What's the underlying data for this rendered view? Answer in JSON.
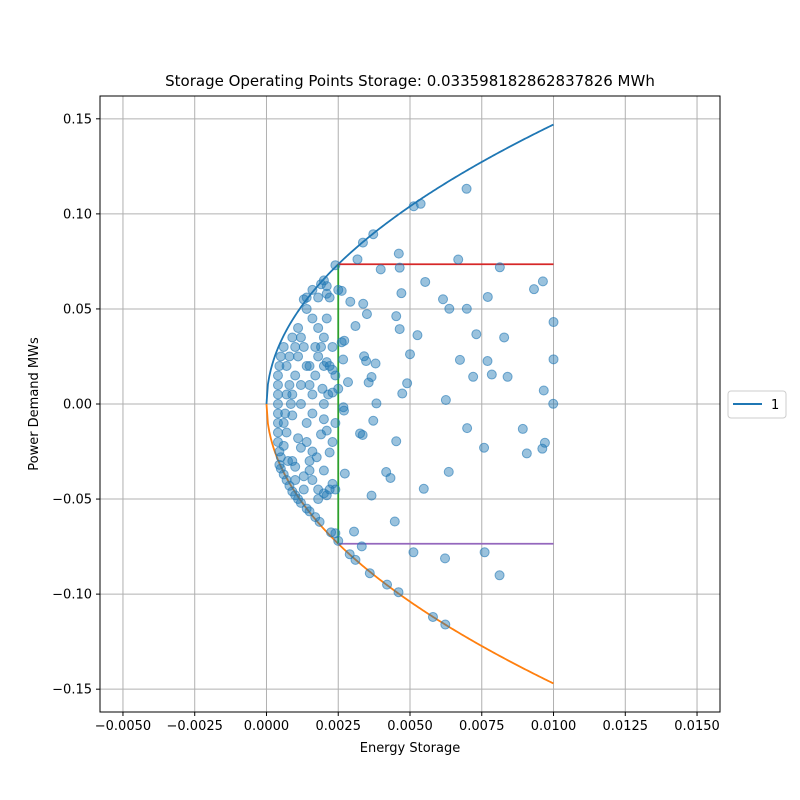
{
  "chart_data": {
    "type": "scatter",
    "title": "Storage Operating Points Storage: 0.033598182862837826 MWh",
    "xlabel": "Energy Storage",
    "ylabel": "Power Demand MWs",
    "xlim": [
      -0.0058,
      0.0158
    ],
    "ylim": [
      -0.162,
      0.162
    ],
    "xticks": [
      -0.005,
      -0.0025,
      0.0,
      0.0025,
      0.005,
      0.0075,
      0.01,
      0.0125,
      0.015
    ],
    "xtick_labels": [
      "−0.0050",
      "−0.0025",
      "0.0000",
      "0.0025",
      "0.0050",
      "0.0075",
      "0.0100",
      "0.0125",
      "0.0150"
    ],
    "yticks": [
      -0.15,
      -0.1,
      -0.05,
      0.0,
      0.05,
      0.1,
      0.15
    ],
    "ytick_labels": [
      "−0.15",
      "−0.10",
      "−0.05",
      "0.00",
      "0.05",
      "0.10",
      "0.15"
    ],
    "grid": true,
    "legend": {
      "placement": "right",
      "entries": [
        "1"
      ]
    },
    "colors": {
      "upper_curve": "#1f77b4",
      "lower_curve": "#ff7f0e",
      "vertical_line": "#2ca02c",
      "upper_limit": "#d62728",
      "lower_limit": "#9467bd",
      "points": "#1f77b4"
    },
    "curves": {
      "upper": {
        "function": "y = 1.47 * sqrt(x)",
        "x_range": [
          0.0,
          0.01
        ]
      },
      "lower": {
        "function": "y = -1.47 * sqrt(x)",
        "x_range": [
          0.0,
          0.01
        ]
      }
    },
    "lines": {
      "vertical": {
        "x": 0.0025,
        "y_range": [
          -0.0735,
          0.0735
        ]
      },
      "upper_limit": {
        "y": 0.0735,
        "x_range": [
          0.0025,
          0.01
        ]
      },
      "lower_limit": {
        "y": -0.0735,
        "x_range": [
          0.0025,
          0.01
        ]
      }
    },
    "points": [
      [
        0.00513,
        0.104
      ],
      [
        0.00537,
        0.1053
      ],
      [
        0.00697,
        0.1132
      ],
      [
        0.00372,
        0.0893
      ],
      [
        0.00336,
        0.0849
      ],
      [
        0.00317,
        0.0761
      ],
      [
        0.00461,
        0.0791
      ],
      [
        0.00668,
        0.076
      ],
      [
        0.00813,
        0.0719
      ],
      [
        0.00398,
        0.0708
      ],
      [
        0.00464,
        0.0717
      ],
      [
        0.00963,
        0.0645
      ],
      [
        0.00553,
        0.0642
      ],
      [
        0.00932,
        0.0604
      ],
      [
        0.0047,
        0.0583
      ],
      [
        0.00615,
        0.0551
      ],
      [
        0.00771,
        0.0563
      ],
      [
        0.00637,
        0.0501
      ],
      [
        0.00698,
        0.0501
      ],
      [
        0.00292,
        0.0538
      ],
      [
        0.00337,
        0.0527
      ],
      [
        0.0035,
        0.0473
      ],
      [
        0.00452,
        0.0462
      ],
      [
        0.01,
        0.0431
      ],
      [
        0.0031,
        0.041
      ],
      [
        0.00464,
        0.0394
      ],
      [
        0.00526,
        0.0362
      ],
      [
        0.00731,
        0.0367
      ],
      [
        0.00828,
        0.035
      ],
      [
        0.00271,
        0.0333
      ],
      [
        0.00267,
        0.0234
      ],
      [
        0.00284,
        0.0115
      ],
      [
        0.0034,
        0.0251
      ],
      [
        0.00347,
        0.0226
      ],
      [
        0.0038,
        0.0213
      ],
      [
        0.005,
        0.0262
      ],
      [
        0.00674,
        0.0232
      ],
      [
        0.0077,
        0.0226
      ],
      [
        0.01,
        0.0235
      ],
      [
        0.00785,
        0.0155
      ],
      [
        0.0072,
        0.0143
      ],
      [
        0.0084,
        0.0143
      ],
      [
        0.00366,
        0.0142
      ],
      [
        0.00356,
        0.0113
      ],
      [
        0.0049,
        0.0109
      ],
      [
        0.00473,
        0.0055
      ],
      [
        0.00966,
        0.0071
      ],
      [
        0.00383,
        0.0003
      ],
      [
        0.00625,
        0.0021
      ],
      [
        0.00999,
        0.0001
      ],
      [
        0.00268,
        -0.0017
      ],
      [
        0.0027,
        -0.0035
      ],
      [
        0.00372,
        -0.0088
      ],
      [
        0.00326,
        -0.0155
      ],
      [
        0.00335,
        -0.0163
      ],
      [
        0.00452,
        -0.0196
      ],
      [
        0.00699,
        -0.0127
      ],
      [
        0.00893,
        -0.0131
      ],
      [
        0.0097,
        -0.0204
      ],
      [
        0.00961,
        -0.0235
      ],
      [
        0.00907,
        -0.026
      ],
      [
        0.00758,
        -0.023
      ],
      [
        0.00417,
        -0.0358
      ],
      [
        0.00432,
        -0.0389
      ],
      [
        0.00273,
        -0.0366
      ],
      [
        0.00635,
        -0.0357
      ],
      [
        0.00548,
        -0.0446
      ],
      [
        0.00366,
        -0.0482
      ],
      [
        0.00447,
        -0.0618
      ],
      [
        0.00305,
        -0.0671
      ],
      [
        0.00332,
        -0.0749
      ],
      [
        0.00512,
        -0.078
      ],
      [
        0.0076,
        -0.078
      ],
      [
        0.00622,
        -0.0812
      ],
      [
        0.00812,
        -0.0901
      ],
      [
        0.0029,
        -0.079
      ],
      [
        0.0031,
        -0.082
      ],
      [
        0.0036,
        -0.089
      ],
      [
        0.0042,
        -0.095
      ],
      [
        0.0046,
        -0.099
      ],
      [
        0.0058,
        -0.112
      ],
      [
        0.00623,
        -0.116
      ],
      [
        0.0025,
        -0.072
      ],
      [
        0.0024,
        -0.068
      ],
      [
        0.00225,
        -0.0675
      ],
      [
        0.00185,
        -0.062
      ],
      [
        0.0017,
        -0.0595
      ],
      [
        0.0015,
        -0.0565
      ],
      [
        0.0014,
        -0.055
      ],
      [
        0.0012,
        -0.052
      ],
      [
        0.0011,
        -0.05
      ],
      [
        0.001,
        -0.048
      ],
      [
        0.0009,
        -0.046
      ],
      [
        0.0008,
        -0.043
      ],
      [
        0.0007,
        -0.04
      ],
      [
        0.0006,
        -0.037
      ],
      [
        0.0005,
        -0.034
      ],
      [
        0.00045,
        -0.032
      ],
      [
        0.0018,
        -0.05
      ],
      [
        0.002,
        -0.047
      ],
      [
        0.0016,
        -0.04
      ],
      [
        0.0013,
        -0.038
      ],
      [
        0.0015,
        -0.035
      ],
      [
        0.001,
        -0.033
      ],
      [
        0.0009,
        -0.03
      ],
      [
        0.002,
        -0.035
      ],
      [
        0.0023,
        -0.042
      ],
      [
        0.0024,
        -0.045
      ],
      [
        0.00175,
        -0.028
      ],
      [
        0.0016,
        -0.025
      ],
      [
        0.0022,
        -0.0255
      ],
      [
        0.0023,
        -0.02
      ],
      [
        0.0019,
        -0.016
      ],
      [
        0.0021,
        -0.014
      ],
      [
        0.002,
        -0.008
      ],
      [
        0.0024,
        -0.01
      ],
      [
        0.0014,
        -0.02
      ],
      [
        0.0012,
        -0.023
      ],
      [
        0.0011,
        -0.018
      ],
      [
        0.0014,
        -0.01
      ],
      [
        0.0016,
        -0.005
      ],
      [
        0.002,
        0.0
      ],
      [
        0.0012,
        0.0
      ],
      [
        0.0009,
        -0.006
      ],
      [
        0.0007,
        -0.015
      ],
      [
        0.0006,
        -0.022
      ],
      [
        0.0005,
        -0.028
      ],
      [
        0.00045,
        -0.025
      ],
      [
        0.0004,
        -0.02
      ],
      [
        0.0004,
        -0.015
      ],
      [
        0.0004,
        -0.01
      ],
      [
        0.0004,
        -0.005
      ],
      [
        0.0004,
        0.0
      ],
      [
        0.0004,
        0.005
      ],
      [
        0.0004,
        0.01
      ],
      [
        0.0004,
        0.015
      ],
      [
        0.00045,
        0.02
      ],
      [
        0.0005,
        0.025
      ],
      [
        0.0006,
        0.03
      ],
      [
        0.0007,
        0.02
      ],
      [
        0.0008,
        0.01
      ],
      [
        0.0009,
        0.005
      ],
      [
        0.001,
        0.015
      ],
      [
        0.0011,
        0.025
      ],
      [
        0.0012,
        0.035
      ],
      [
        0.0013,
        0.03
      ],
      [
        0.0014,
        0.02
      ],
      [
        0.0015,
        0.01
      ],
      [
        0.0016,
        0.005
      ],
      [
        0.0017,
        0.015
      ],
      [
        0.0018,
        0.025
      ],
      [
        0.0019,
        0.03
      ],
      [
        0.002,
        0.02
      ],
      [
        0.0021,
        0.022
      ],
      [
        0.0022,
        0.02
      ],
      [
        0.0023,
        0.018
      ],
      [
        0.00195,
        0.008
      ],
      [
        0.00215,
        0.005
      ],
      [
        0.0023,
        0.006
      ],
      [
        0.002,
        0.035
      ],
      [
        0.0018,
        0.04
      ],
      [
        0.0016,
        0.045
      ],
      [
        0.0014,
        0.05
      ],
      [
        0.0013,
        0.055
      ],
      [
        0.0014,
        0.056
      ],
      [
        0.0018,
        0.056
      ],
      [
        0.0021,
        0.058
      ],
      [
        0.0022,
        0.056
      ],
      [
        0.0016,
        0.06
      ],
      [
        0.0019,
        0.063
      ],
      [
        0.002,
        0.065
      ],
      [
        0.0021,
        0.062
      ],
      [
        0.0011,
        0.04
      ],
      [
        0.001,
        0.03
      ],
      [
        0.0021,
        0.045
      ],
      [
        0.0023,
        0.03
      ],
      [
        0.0025,
        0.008
      ],
      [
        0.0024,
        0.015
      ],
      [
        0.0022,
        -0.045
      ],
      [
        0.0021,
        -0.048
      ],
      [
        0.0018,
        -0.045
      ],
      [
        0.0015,
        -0.03
      ],
      [
        0.0025,
        0.06
      ],
      [
        0.0024,
        0.073
      ],
      [
        0.00262,
        0.0595
      ],
      [
        0.00262,
        0.0325
      ],
      [
        0.0013,
        -0.045
      ],
      [
        0.001,
        -0.04
      ],
      [
        0.0006,
        -0.01
      ],
      [
        0.0007,
        0.005
      ],
      [
        0.0008,
        0.025
      ],
      [
        0.0009,
        0.035
      ],
      [
        0.00085,
        0.0
      ],
      [
        0.00075,
        -0.03
      ],
      [
        0.00065,
        -0.005
      ],
      [
        0.0012,
        0.01
      ],
      [
        0.0015,
        0.02
      ],
      [
        0.0017,
        0.03
      ]
    ]
  }
}
